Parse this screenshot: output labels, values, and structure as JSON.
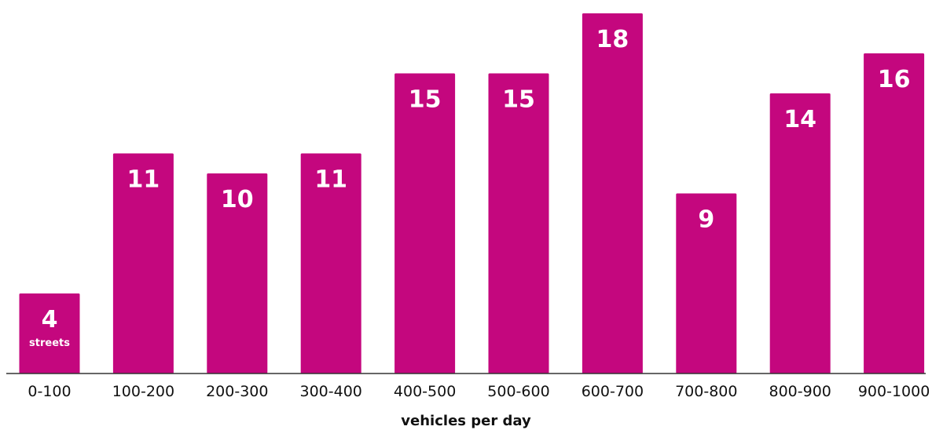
{
  "chart_data": {
    "type": "bar",
    "categories": [
      "0-100",
      "100-200",
      "200-300",
      "300-400",
      "400-500",
      "500-600",
      "600-700",
      "700-800",
      "800-900",
      "900-1000"
    ],
    "values": [
      4,
      11,
      10,
      11,
      15,
      15,
      18,
      9,
      14,
      16
    ],
    "value_labels": [
      "4",
      "11",
      "10",
      "11",
      "15",
      "15",
      "18",
      "9",
      "14",
      "16"
    ],
    "first_bar_unit": "streets",
    "title": "",
    "xlabel": "vehicles per day",
    "ylabel": "",
    "ylim": [
      0,
      18
    ],
    "grid": false,
    "colors": {
      "bar": "#C4077E",
      "axis": "#333333",
      "value_text": "#ffffff",
      "label_text": "#111111"
    }
  }
}
